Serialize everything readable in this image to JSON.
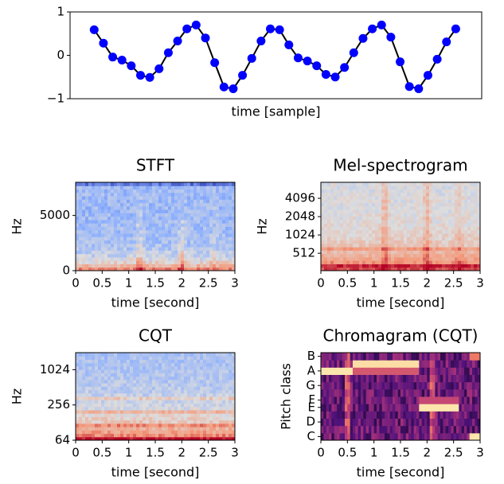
{
  "chart_data": [
    {
      "type": "line",
      "xlabel": "time [sample]",
      "color": "#000000",
      "marker_color": "#0000ff",
      "values": [
        0.59,
        0.28,
        -0.04,
        -0.11,
        -0.24,
        -0.46,
        -0.51,
        -0.31,
        0.06,
        0.33,
        0.61,
        0.7,
        0.4,
        -0.17,
        -0.73,
        -0.77,
        -0.46,
        -0.07,
        0.33,
        0.61,
        0.59,
        0.24,
        -0.06,
        -0.13,
        -0.24,
        -0.44,
        -0.5,
        -0.28,
        0.06,
        0.39,
        0.61,
        0.7,
        0.42,
        -0.15,
        -0.72,
        -0.77,
        -0.46,
        -0.09,
        0.31,
        0.61
      ],
      "ylim": [
        -1,
        1
      ],
      "yticks": [
        1,
        0,
        {
          "value": -1,
          "label": "−1"
        }
      ]
    },
    {
      "type": "spectrogram",
      "title": "STFT",
      "xlabel": "time [second]",
      "ylabel": "Hz",
      "xlim": [
        0,
        3
      ],
      "xticks": [
        0,
        0.5,
        1,
        1.5,
        2,
        2.5,
        3
      ],
      "ylim": [
        0,
        8000
      ],
      "yticks": [
        0,
        5000
      ]
    },
    {
      "type": "spectrogram",
      "title": "Mel-spectrogram",
      "xlabel": "time [second]",
      "ylabel": "Hz",
      "xlim": [
        0,
        3
      ],
      "xticks": [
        0,
        0.5,
        1,
        1.5,
        2,
        2.5,
        3
      ],
      "yscale": "log",
      "ylim": [
        265,
        7500
      ],
      "yticks": [
        512,
        1024,
        2048,
        4096
      ]
    },
    {
      "type": "spectrogram",
      "title": "CQT",
      "xlabel": "time [second]",
      "ylabel": "Hz",
      "xlim": [
        0,
        3
      ],
      "xticks": [
        0,
        0.5,
        1,
        1.5,
        2,
        2.5,
        3
      ],
      "yscale": "log",
      "ylim": [
        64,
        2000
      ],
      "yticks": [
        64,
        256,
        1024
      ]
    },
    {
      "type": "chromagram",
      "title": "Chromagram (CQT)",
      "xlabel": "time [second]",
      "ylabel": "Pitch class",
      "xlim": [
        0,
        3
      ],
      "xticks": [
        0,
        0.5,
        1,
        1.5,
        2,
        2.5,
        3
      ],
      "categories": [
        "C",
        null,
        "D",
        null,
        "E",
        "F",
        null,
        "G",
        null,
        "A",
        null,
        "B"
      ]
    }
  ]
}
